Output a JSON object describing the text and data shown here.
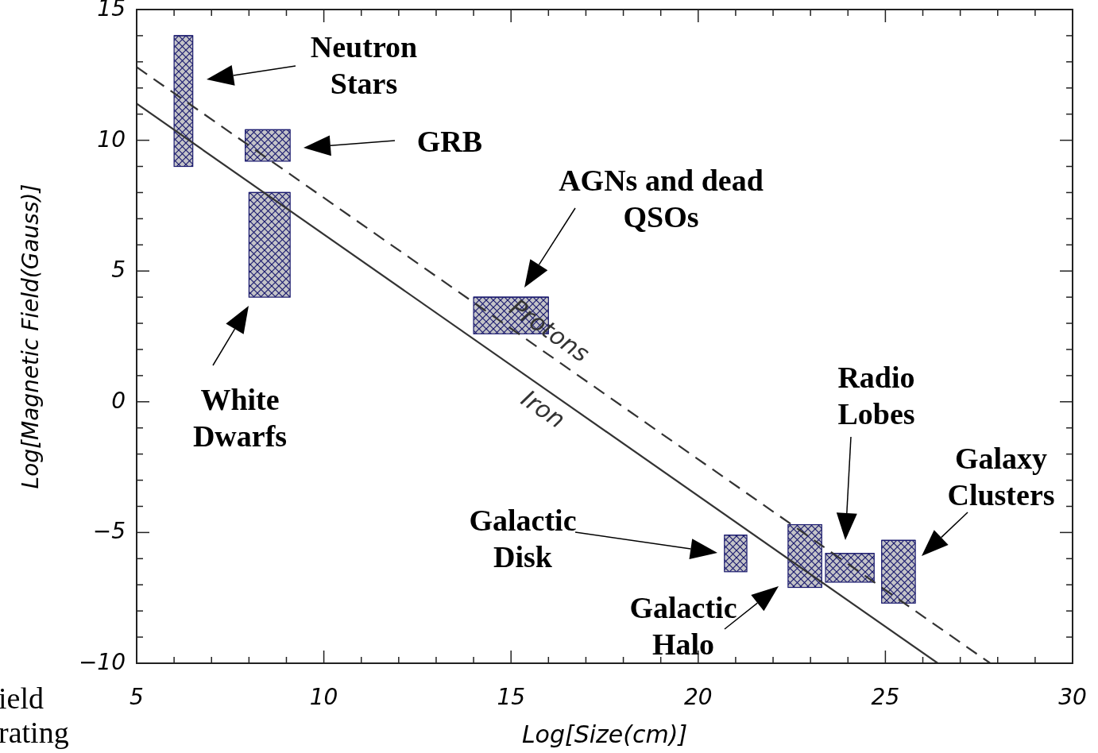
{
  "chart_data": {
    "type": "bar",
    "xlabel": "Log[Size(cm)]",
    "ylabel": "Log[Magnetic Field(Gauss)]",
    "xlim": [
      5,
      30
    ],
    "xticks": [
      5,
      10,
      15,
      20,
      25,
      30
    ],
    "ylim": [
      -10,
      15
    ],
    "yticks": [
      {
        "value": -10,
        "label": "−10"
      },
      {
        "value": -5,
        "label": "−5"
      },
      0,
      5,
      10,
      15
    ],
    "series": [
      {
        "color": "#1a1a6e",
        "x": [
          6.25,
          8.5,
          8.55,
          15.0,
          21.0,
          22.85,
          24.05,
          25.35
        ],
        "base": [
          9.0,
          9.2,
          4.0,
          2.6,
          -6.5,
          -7.1,
          -6.9,
          -7.7
        ],
        "values": [
          5.0,
          1.2,
          4.0,
          1.4,
          1.4,
          2.4,
          1.1,
          2.4
        ],
        "xerrors": [
          [
            6.0,
            6.5
          ],
          [
            7.9,
            9.1
          ],
          [
            8.0,
            9.1
          ],
          [
            14.0,
            16.0
          ],
          [
            20.7,
            21.3
          ],
          [
            22.4,
            23.3
          ],
          [
            23.4,
            24.7
          ],
          [
            24.9,
            25.8
          ]
        ]
      },
      {
        "type": "line",
        "name": "Protons",
        "color": "#333333",
        "line_style": "dashed",
        "x": [
          5,
          27.8
        ],
        "values": [
          12.8,
          -10
        ]
      },
      {
        "type": "line",
        "name": "Iron",
        "color": "#333333",
        "line_style": "solid",
        "x": [
          5,
          26.4
        ],
        "values": [
          11.4,
          -10
        ]
      }
    ],
    "annotations": [
      "Neutron Stars",
      "GRB",
      "White Dwarfs",
      "AGNs and dead QSOs",
      "Galactic Disk",
      "Galactic Halo",
      "Radio Lobes",
      "Galaxy Clusters",
      "ield",
      "rating"
    ]
  }
}
